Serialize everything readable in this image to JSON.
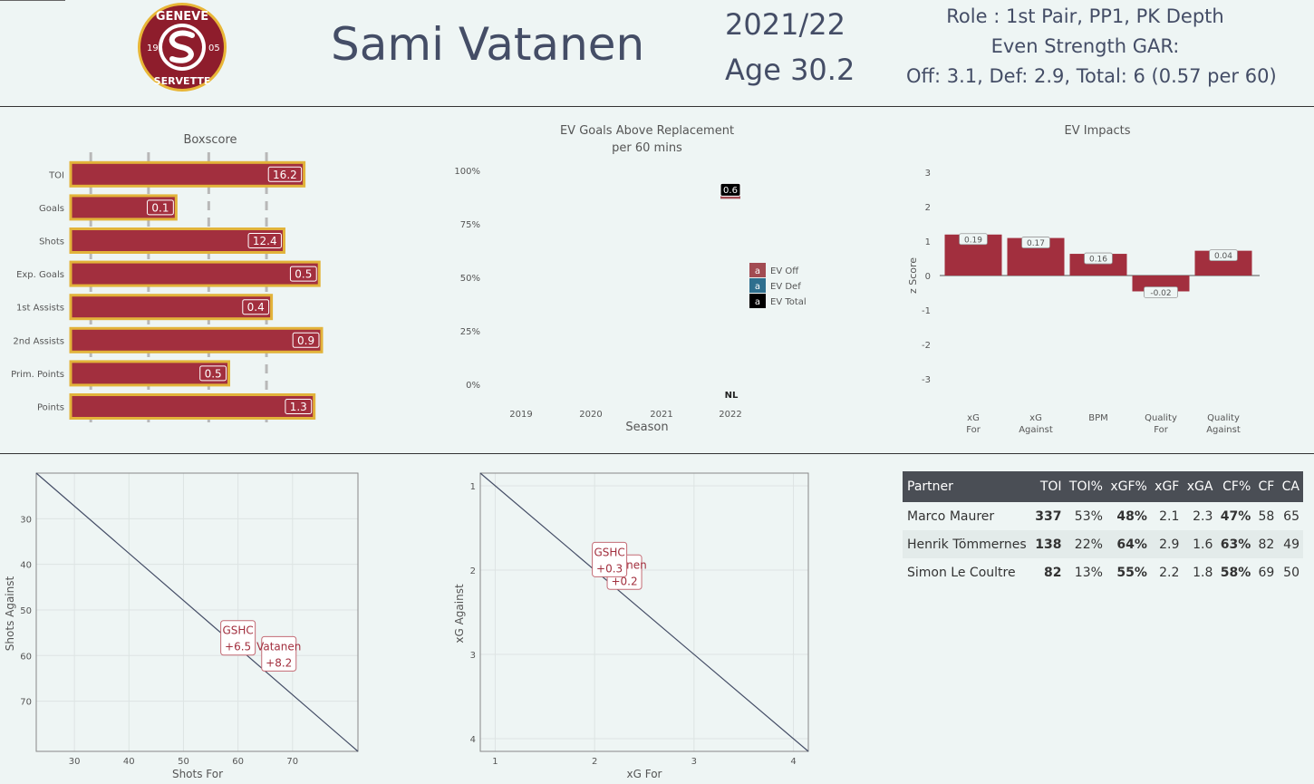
{
  "header": {
    "logo": {
      "top": "GENEVE",
      "bottom": "SERVETTE",
      "left": "19",
      "right": "05"
    },
    "player": "Sami Vatanen",
    "season": "2021/22",
    "age": "Age 30.2",
    "role": "Role : 1st Pair, PP1, PK Depth",
    "gar_label": "Even Strength GAR:",
    "gar_values": "Off: 3.1, Def: 2.9, Total: 6 (0.57 per 60)"
  },
  "colors": {
    "bar": "#a22f3e",
    "bar_outline": "#e2b33a",
    "ev_off": "#a24b52",
    "ev_def": "#2e6f8e",
    "ev_total": "#000000",
    "line": "#444d66"
  },
  "chart_data": [
    {
      "type": "bar",
      "title": "Boxscore",
      "orientation": "horizontal",
      "categories": [
        "TOI",
        "Goals",
        "Shots",
        "Exp. Goals",
        "1st Assists",
        "2nd Assists",
        "Prim. Points",
        "Points"
      ],
      "values": [
        16.2,
        0.1,
        12.4,
        0.5,
        0.4,
        0.9,
        0.5,
        1.3
      ],
      "percentile": [
        0.93,
        0.42,
        0.85,
        0.99,
        0.8,
        1.0,
        0.63,
        0.97
      ]
    },
    {
      "type": "bar",
      "title": "EV Goals Above Replacement",
      "subtitle": "per 60 mins",
      "xlabel": "Season",
      "x": [
        2019,
        2020,
        2021,
        2022
      ],
      "ylim": [
        0,
        100
      ],
      "yticks": [
        "0%",
        "25%",
        "50%",
        "75%",
        "100%"
      ],
      "league_label": "NL",
      "series": [
        {
          "name": "EV Off",
          "values": [
            null,
            null,
            null,
            88
          ]
        },
        {
          "name": "EV Def",
          "values": [
            null,
            null,
            null,
            88
          ]
        },
        {
          "name": "EV Total",
          "values": [
            null,
            null,
            null,
            88
          ]
        }
      ],
      "data_labels": [
        "0.6"
      ],
      "legend_swatch": "a",
      "legend": "right"
    },
    {
      "type": "bar",
      "title": "EV Impacts",
      "ylabel": "z Score",
      "ylim": [
        -3.5,
        3.5
      ],
      "yticks": [
        3,
        2,
        1,
        0,
        -1,
        -2,
        -3
      ],
      "categories": [
        [
          "xG",
          "For"
        ],
        [
          "xG",
          "Against"
        ],
        [
          "BPM"
        ],
        [
          "Quality",
          "For"
        ],
        [
          "Quality",
          "Against"
        ]
      ],
      "values": [
        1.19,
        1.09,
        0.63,
        -0.46,
        0.72
      ],
      "labels": [
        "0.19",
        "0.17",
        "0.16",
        "-0.02",
        "0.04"
      ]
    },
    {
      "type": "scatter",
      "xlabel": "Shots For",
      "ylabel": "Shots Against",
      "xlim": [
        23,
        82
      ],
      "ylim": [
        20,
        81
      ],
      "xticks": [
        30,
        40,
        50,
        60,
        70
      ],
      "yticks": [
        30,
        40,
        50,
        60,
        70
      ],
      "points": [
        {
          "name": "GSHC",
          "value": "+6.5",
          "x": 60,
          "y": 57.5
        },
        {
          "name": "Vatanen",
          "value": "+8.2",
          "x": 67.5,
          "y": 61
        }
      ]
    },
    {
      "type": "scatter",
      "xlabel": "xG For",
      "ylabel": "xG Against",
      "xlim": [
        0.85,
        4.15
      ],
      "ylim": [
        0.85,
        4.15
      ],
      "xticks": [
        1,
        2,
        3,
        4
      ],
      "yticks": [
        1,
        2,
        3,
        4
      ],
      "points": [
        {
          "name": "GSHC",
          "value": "+0.3",
          "x": 2.15,
          "y": 1.95
        },
        {
          "name": "Vatanen",
          "value": "+0.2",
          "x": 2.3,
          "y": 2.1
        }
      ]
    }
  ],
  "partner_table": {
    "columns": [
      "Partner",
      "TOI",
      "TOI%",
      "xGF%",
      "xGF",
      "xGA",
      "CF%",
      "CF",
      "CA"
    ],
    "rows": [
      [
        "Marco Maurer",
        "337",
        "53%",
        "48%",
        "2.1",
        "2.3",
        "47%",
        "58",
        "65"
      ],
      [
        "Henrik Tömmernes",
        "138",
        "22%",
        "64%",
        "2.9",
        "1.6",
        "63%",
        "82",
        "49"
      ],
      [
        "Simon Le Coultre",
        "82",
        "13%",
        "55%",
        "2.2",
        "1.8",
        "58%",
        "69",
        "50"
      ]
    ]
  }
}
